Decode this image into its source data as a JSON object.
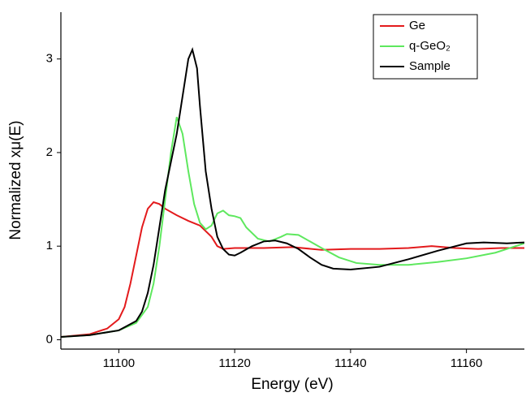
{
  "chart_data": {
    "type": "line",
    "x_label": "Energy (eV)",
    "y_label": "Normalized xμ(E)",
    "xlim": [
      11090,
      11170
    ],
    "xticks": [
      11100,
      11120,
      11140,
      11160
    ],
    "ylim": [
      -0.1,
      3.5
    ],
    "yticks": [
      0,
      1,
      2,
      3
    ],
    "legend": "upper right",
    "series": [
      {
        "name": "Ge",
        "color": "#e31a1c",
        "x": [
          11090,
          11095,
          11098,
          11100,
          11101,
          11102,
          11103,
          11104,
          11105,
          11106,
          11107,
          11108,
          11110,
          11112,
          11114,
          11116,
          11117,
          11118,
          11120,
          11125,
          11130,
          11135,
          11140,
          11145,
          11150,
          11154,
          11158,
          11162,
          11166,
          11170
        ],
        "values": [
          0.03,
          0.06,
          0.12,
          0.22,
          0.35,
          0.6,
          0.9,
          1.2,
          1.4,
          1.47,
          1.45,
          1.4,
          1.33,
          1.27,
          1.22,
          1.1,
          1.0,
          0.97,
          0.98,
          0.98,
          0.99,
          0.96,
          0.97,
          0.97,
          0.98,
          1.0,
          0.98,
          0.97,
          0.98,
          0.98
        ]
      },
      {
        "name": "q-GeO₂",
        "color": "#5ee85e",
        "x": [
          11090,
          11095,
          11100,
          11103,
          11105,
          11106,
          11107,
          11108,
          11109,
          11110,
          11111,
          11112,
          11113,
          11114,
          11115,
          11116,
          11117,
          11118,
          11119,
          11120,
          11121,
          11122,
          11124,
          11126,
          11128,
          11129,
          11131,
          11133,
          11135,
          11138,
          11141,
          11145,
          11150,
          11155,
          11160,
          11165,
          11170
        ],
        "values": [
          0.03,
          0.05,
          0.1,
          0.18,
          0.35,
          0.6,
          1.0,
          1.5,
          2.0,
          2.38,
          2.2,
          1.8,
          1.45,
          1.25,
          1.18,
          1.22,
          1.35,
          1.38,
          1.33,
          1.32,
          1.3,
          1.2,
          1.08,
          1.05,
          1.1,
          1.13,
          1.12,
          1.05,
          0.98,
          0.88,
          0.82,
          0.8,
          0.8,
          0.83,
          0.87,
          0.93,
          1.03
        ]
      },
      {
        "name": "Sample",
        "color": "#000000",
        "x": [
          11090,
          11095,
          11100,
          11103,
          11104,
          11105,
          11106,
          11107,
          11108,
          11109,
          11110,
          11111,
          11112,
          11112.7,
          11113.5,
          11114,
          11115,
          11116,
          11117,
          11118,
          11119,
          11120,
          11121,
          11123,
          11125,
          11127,
          11129,
          11131,
          11133,
          11135,
          11137,
          11140,
          11145,
          11150,
          11155,
          11160,
          11163,
          11167,
          11170
        ],
        "values": [
          0.03,
          0.05,
          0.1,
          0.2,
          0.3,
          0.5,
          0.8,
          1.2,
          1.6,
          1.9,
          2.2,
          2.6,
          3.0,
          3.1,
          2.9,
          2.5,
          1.8,
          1.4,
          1.1,
          0.97,
          0.91,
          0.9,
          0.93,
          1.0,
          1.05,
          1.06,
          1.03,
          0.97,
          0.88,
          0.8,
          0.76,
          0.75,
          0.78,
          0.86,
          0.95,
          1.03,
          1.04,
          1.03,
          1.04
        ]
      }
    ]
  }
}
